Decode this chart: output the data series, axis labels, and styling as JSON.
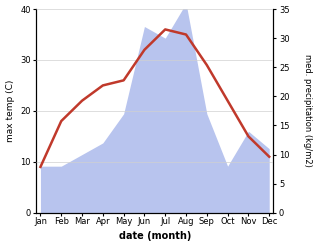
{
  "months": [
    "Jan",
    "Feb",
    "Mar",
    "Apr",
    "May",
    "Jun",
    "Jul",
    "Aug",
    "Sep",
    "Oct",
    "Nov",
    "Dec"
  ],
  "temperature": [
    9,
    18,
    22,
    25,
    26,
    32,
    36,
    35,
    29,
    22,
    15,
    11
  ],
  "precipitation": [
    8,
    8,
    10,
    12,
    17,
    32,
    30,
    36,
    17,
    8,
    14,
    11
  ],
  "temp_color": "#c0392b",
  "precip_color": "#b8c4ee",
  "temp_ylim": [
    0,
    40
  ],
  "precip_ylim": [
    0,
    35
  ],
  "temp_yticks": [
    0,
    10,
    20,
    30,
    40
  ],
  "precip_yticks": [
    0,
    5,
    10,
    15,
    20,
    25,
    30,
    35
  ],
  "ylabel_left": "max temp (C)",
  "ylabel_right": "med. precipitation (kg/m2)",
  "xlabel": "date (month)",
  "bg_color": "#ffffff",
  "grid_color": "#d0d0d0"
}
